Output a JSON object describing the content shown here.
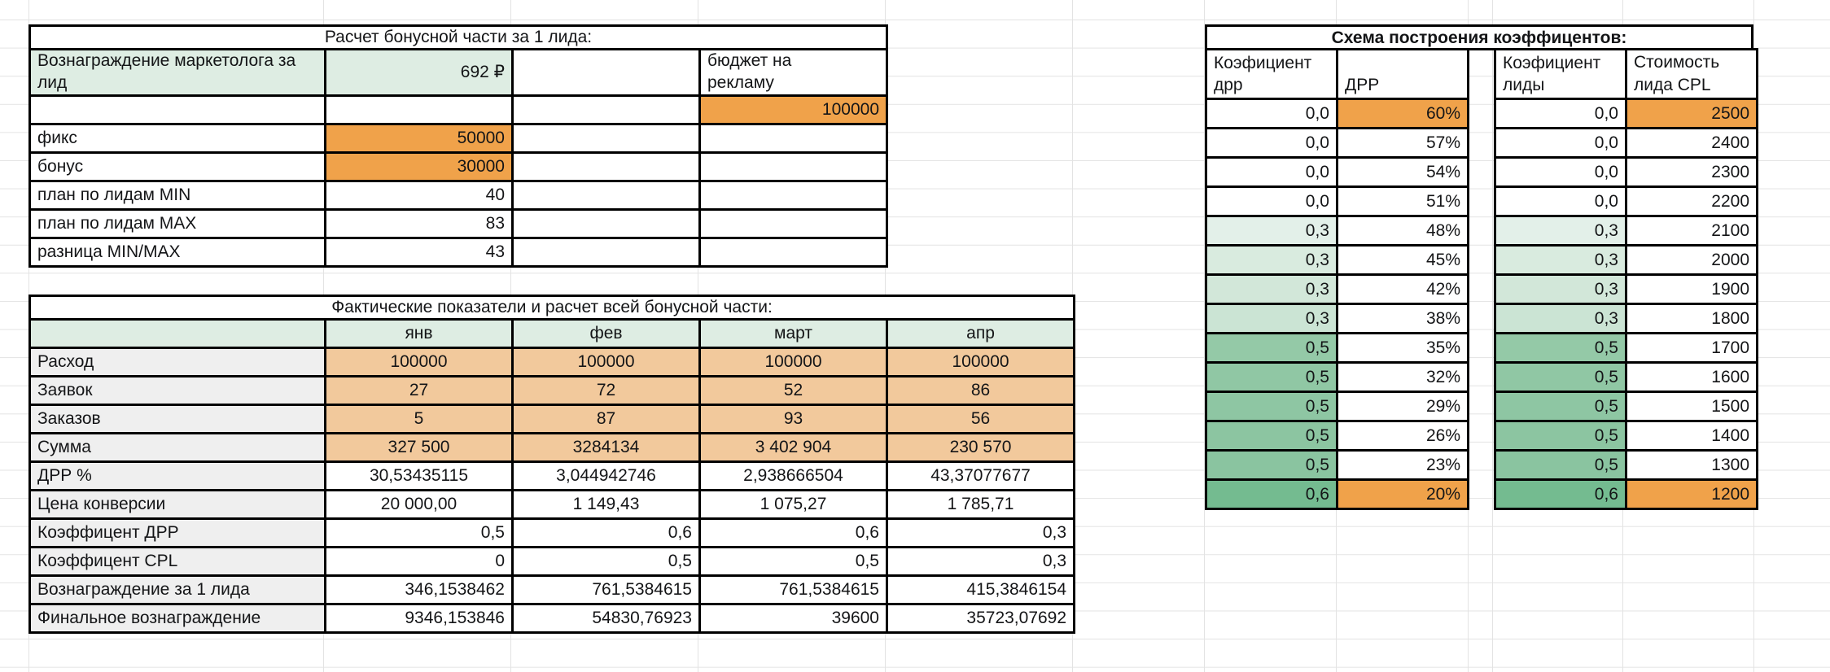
{
  "colors": {
    "orange": "#F0A24A",
    "peach": "#F2C99C",
    "mint": "#DEEDE3",
    "label_gray": "#EFEFEF",
    "grid_line": "#E3E3E3",
    "border": "#000000"
  },
  "bonus_table": {
    "title": "Расчет бонусной части за 1 лида:",
    "reward_label": "Вознаграждение маркетолога за лид",
    "reward_value": "692 ₽",
    "budget_label": "бюджет на рекламу",
    "budget_value": "100000",
    "rows": [
      {
        "label": "фикс",
        "value": "50000",
        "highlight": true
      },
      {
        "label": "бонус",
        "value": "30000",
        "highlight": true
      },
      {
        "label": "план по лидам MIN",
        "value": "40",
        "highlight": false
      },
      {
        "label": "план по лидам MAX",
        "value": "83",
        "highlight": false
      },
      {
        "label": "разница MIN/MAX",
        "value": "43",
        "highlight": false
      }
    ]
  },
  "fact_table": {
    "title": "Фактические показатели и расчет всей бонусной части:",
    "months": [
      "янв",
      "фев",
      "март",
      "апр"
    ],
    "rows": [
      {
        "label": "Расход",
        "values": [
          "100000",
          "100000",
          "100000",
          "100000"
        ],
        "style": "peach"
      },
      {
        "label": "Заявок",
        "values": [
          "27",
          "72",
          "52",
          "86"
        ],
        "style": "peach"
      },
      {
        "label": "Заказов",
        "values": [
          "5",
          "87",
          "93",
          "56"
        ],
        "style": "peach"
      },
      {
        "label": "Сумма",
        "values": [
          "327 500",
          "3284134",
          "3 402 904",
          "230 570"
        ],
        "style": "peach"
      },
      {
        "label": "ДРР %",
        "values": [
          "30,53435115",
          "3,044942746",
          "2,938666504",
          "43,37077677"
        ],
        "style": "center"
      },
      {
        "label": "Цена конверсии",
        "values": [
          "20 000,00",
          "1 149,43",
          "1 075,27",
          "1 785,71"
        ],
        "style": "center"
      },
      {
        "label": "Коэффицент ДРР",
        "values": [
          "0,5",
          "0,6",
          "0,6",
          "0,3"
        ],
        "style": "right"
      },
      {
        "label": "Коэффицент CPL",
        "values": [
          "0",
          "0,5",
          "0,5",
          "0,3"
        ],
        "style": "right"
      },
      {
        "label": "Вознаграждение за 1 лида",
        "values": [
          "346,1538462",
          "761,5384615",
          "761,5384615",
          "415,3846154"
        ],
        "style": "right"
      },
      {
        "label": "Финальное вознаграждение",
        "values": [
          "9346,153846",
          "54830,76923",
          "39600",
          "35723,07692"
        ],
        "style": "right"
      }
    ]
  },
  "coeff_table": {
    "title": "Схема построения коэффицентов:",
    "row_colors": [
      "#FFFFFF",
      "#FFFFFF",
      "#FFFFFF",
      "#FFFFFF",
      "#E3F0E9",
      "#D9EBDF",
      "#D2E7D9",
      "#CBE4D4",
      "#94C9A7",
      "#90C7A4",
      "#8EC6A3",
      "#8CC5A1",
      "#8AC4A0",
      "#74BB90"
    ],
    "highlight_rows": [
      0,
      13
    ],
    "drr": {
      "coef_header": "Коэфициент дрр",
      "value_header": "ДРР",
      "rows": [
        [
          "0,0",
          "60%"
        ],
        [
          "0,0",
          "57%"
        ],
        [
          "0,0",
          "54%"
        ],
        [
          "0,0",
          "51%"
        ],
        [
          "0,3",
          "48%"
        ],
        [
          "0,3",
          "45%"
        ],
        [
          "0,3",
          "42%"
        ],
        [
          "0,3",
          "38%"
        ],
        [
          "0,5",
          "35%"
        ],
        [
          "0,5",
          "32%"
        ],
        [
          "0,5",
          "29%"
        ],
        [
          "0,5",
          "26%"
        ],
        [
          "0,5",
          "23%"
        ],
        [
          "0,6",
          "20%"
        ]
      ]
    },
    "cpl": {
      "coef_header": "Коэфициент лиды",
      "value_header": "Стоимость лида CPL",
      "rows": [
        [
          "0,0",
          "2500"
        ],
        [
          "0,0",
          "2400"
        ],
        [
          "0,0",
          "2300"
        ],
        [
          "0,0",
          "2200"
        ],
        [
          "0,3",
          "2100"
        ],
        [
          "0,3",
          "2000"
        ],
        [
          "0,3",
          "1900"
        ],
        [
          "0,3",
          "1800"
        ],
        [
          "0,5",
          "1700"
        ],
        [
          "0,5",
          "1600"
        ],
        [
          "0,5",
          "1500"
        ],
        [
          "0,5",
          "1400"
        ],
        [
          "0,5",
          "1300"
        ],
        [
          "0,6",
          "1200"
        ]
      ]
    }
  }
}
